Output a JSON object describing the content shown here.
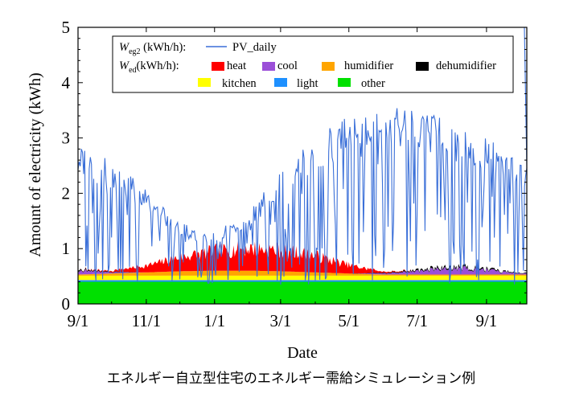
{
  "chart_data": {
    "type": "area",
    "xlabel": "Date",
    "ylabel": "Amount of electricity (kWh)",
    "caption": "エネルギー自立型住宅のエネルギー需給シミュレーション例",
    "x_range": [
      "2012-09-01",
      "2013-10-07"
    ],
    "x_ticks": [
      {
        "label": "9/1",
        "date": "2012-09-01"
      },
      {
        "label": "11/1",
        "date": "2012-11-01"
      },
      {
        "label": "1/1",
        "date": "2013-01-01"
      },
      {
        "label": "3/1",
        "date": "2013-03-01"
      },
      {
        "label": "5/1",
        "date": "2013-05-01"
      },
      {
        "label": "7/1",
        "date": "2013-07-01"
      },
      {
        "label": "9/1",
        "date": "2013-09-01"
      }
    ],
    "ylim": [
      0,
      5
    ],
    "y_ticks": [
      "0",
      "1",
      "2",
      "3",
      "4",
      "5"
    ],
    "legend_position": "top",
    "legend": {
      "supply_label": {
        "var": "W",
        "sub": "eg2",
        "unit": " (kWh/h):"
      },
      "demand_label": {
        "var": "W",
        "sub": "ed",
        "unit": "(kWh/h):"
      }
    },
    "supply_series": {
      "name": "PV_daily",
      "color": "#3a6fd8"
    },
    "demand_series": [
      {
        "name": "heat",
        "color": "#ff0000"
      },
      {
        "name": "cool",
        "color": "#9b4fd8"
      },
      {
        "name": "humidifier",
        "color": "#ffa500"
      },
      {
        "name": "dehumidifier",
        "color": "#000000"
      },
      {
        "name": "kitchen",
        "color": "#ffff00"
      },
      {
        "name": "light",
        "color": "#1e90ff"
      },
      {
        "name": "other",
        "color": "#00e000"
      }
    ],
    "stack_profile": {
      "dates": [
        "2012-09-01",
        "2012-10-01",
        "2012-11-01",
        "2012-12-01",
        "2013-01-01",
        "2013-02-01",
        "2013-03-01",
        "2013-04-01",
        "2013-05-01",
        "2013-06-01",
        "2013-07-01",
        "2013-08-01",
        "2013-09-01",
        "2013-10-01"
      ],
      "other": [
        0.4,
        0.4,
        0.4,
        0.4,
        0.4,
        0.4,
        0.4,
        0.4,
        0.4,
        0.4,
        0.4,
        0.4,
        0.4,
        0.4
      ],
      "light": [
        0.03,
        0.03,
        0.03,
        0.03,
        0.03,
        0.03,
        0.03,
        0.03,
        0.03,
        0.03,
        0.03,
        0.03,
        0.03,
        0.03
      ],
      "kitchen": [
        0.08,
        0.08,
        0.08,
        0.08,
        0.08,
        0.08,
        0.08,
        0.08,
        0.08,
        0.08,
        0.08,
        0.08,
        0.08,
        0.08
      ],
      "humidifier": [
        0.02,
        0.04,
        0.06,
        0.08,
        0.09,
        0.09,
        0.08,
        0.06,
        0.04,
        0.02,
        0.02,
        0.02,
        0.02,
        0.02
      ],
      "cool": [
        0.08,
        0.02,
        0.0,
        0.0,
        0.0,
        0.0,
        0.0,
        0.0,
        0.0,
        0.02,
        0.06,
        0.12,
        0.08,
        0.02
      ],
      "dehumidifier": [
        0.02,
        0.01,
        0.0,
        0.0,
        0.0,
        0.0,
        0.0,
        0.0,
        0.0,
        0.01,
        0.02,
        0.03,
        0.02,
        0.01
      ],
      "heat": [
        0.0,
        0.02,
        0.12,
        0.25,
        0.35,
        0.4,
        0.38,
        0.3,
        0.15,
        0.02,
        0.0,
        0.0,
        0.0,
        0.0
      ]
    },
    "pv_profile": {
      "dates": [
        "2012-09-01",
        "2012-10-01",
        "2012-11-01",
        "2012-12-01",
        "2013-01-01",
        "2013-02-01",
        "2013-03-01",
        "2013-04-01",
        "2013-05-01",
        "2013-06-01",
        "2013-07-01",
        "2013-08-01",
        "2013-09-01",
        "2013-10-01"
      ],
      "peak": [
        2.9,
        2.6,
        2.1,
        1.5,
        1.3,
        1.7,
        2.4,
        3.0,
        3.5,
        3.6,
        3.5,
        3.3,
        3.0,
        2.7
      ],
      "min": 0.35,
      "end_spike": 5.0
    }
  }
}
